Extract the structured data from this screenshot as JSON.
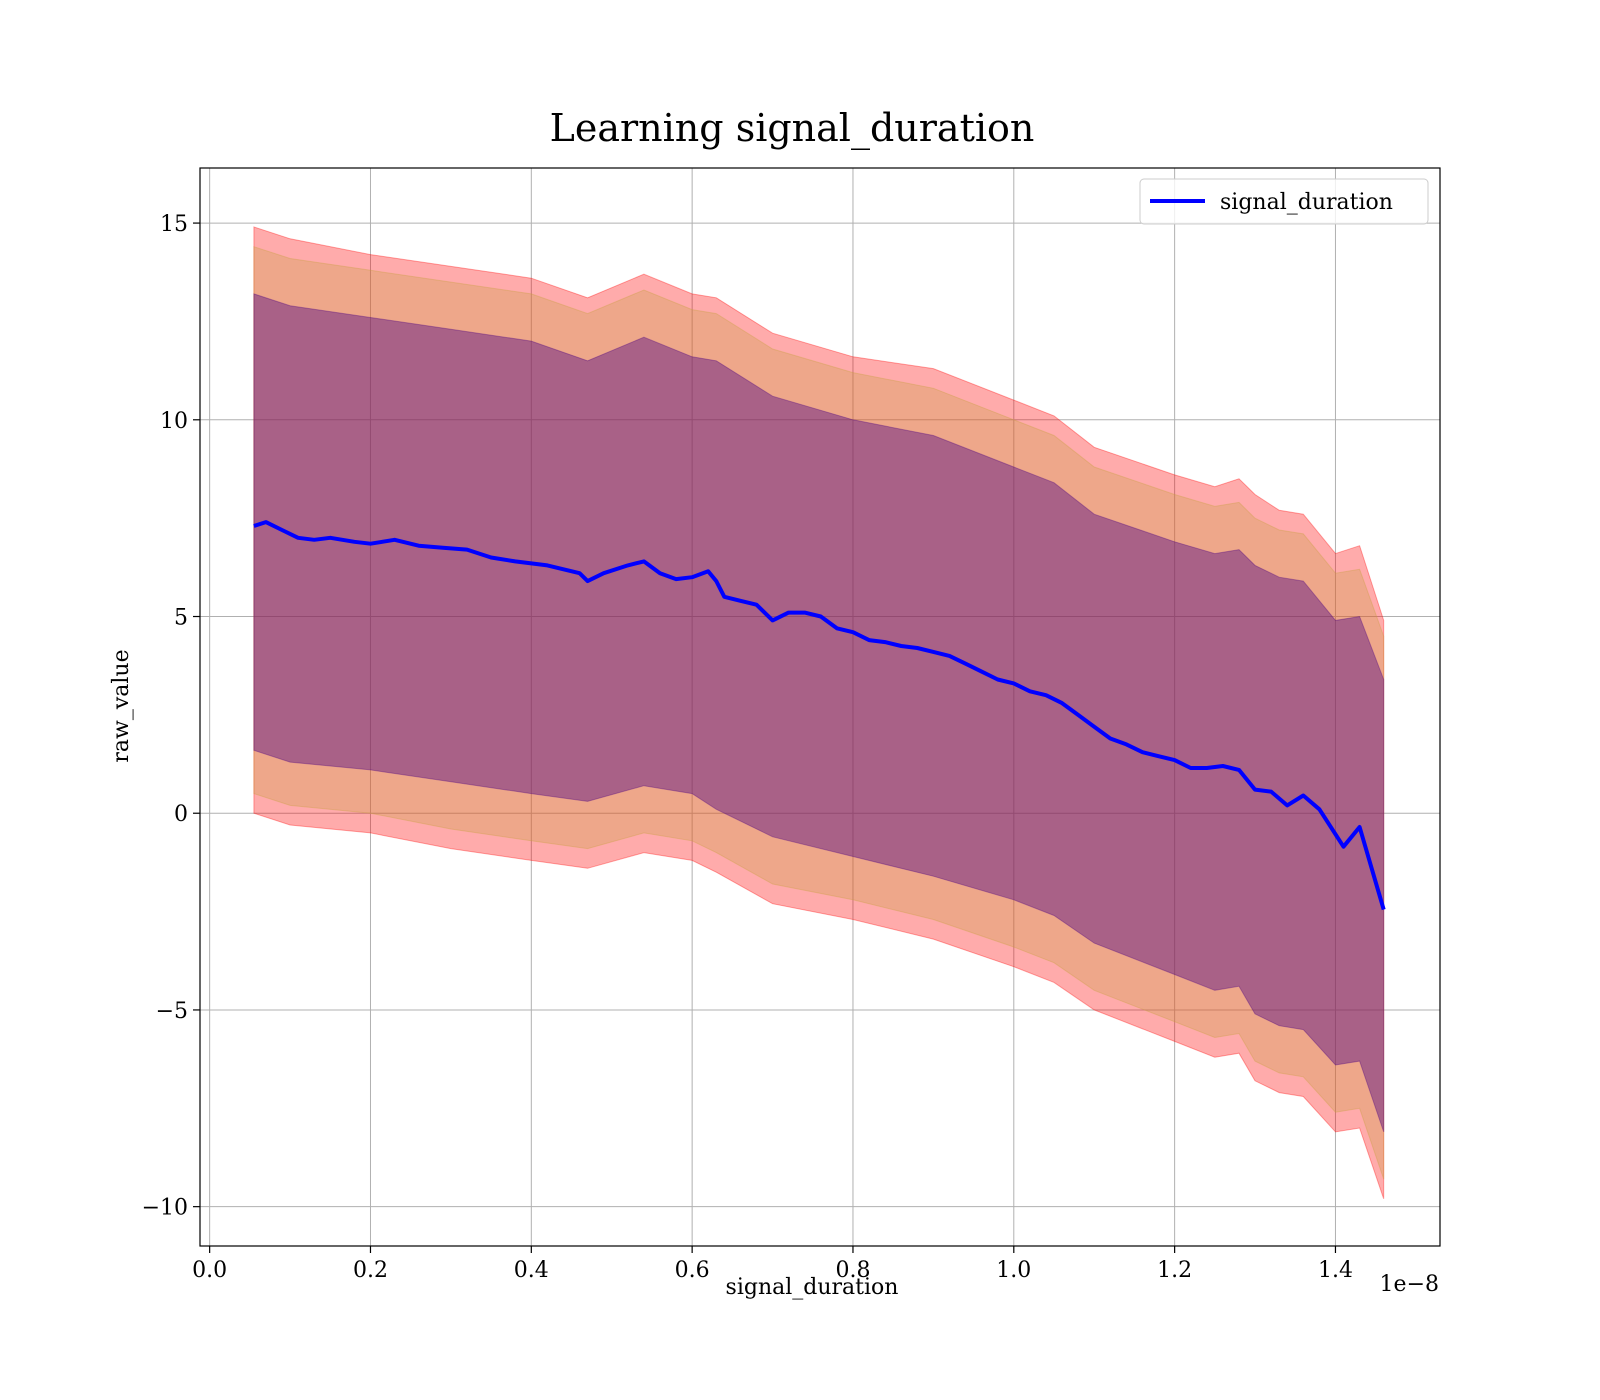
{
  "chart_data": {
    "type": "line",
    "title": "Learning signal_duration",
    "xlabel": "signal_duration",
    "ylabel": "raw_value",
    "x_offset_label": "1e−8",
    "xlim": [
      -0.012,
      1.53
    ],
    "ylim": [
      -11.0,
      16.4
    ],
    "x_ticks": [
      0.0,
      0.2,
      0.4,
      0.6,
      0.8,
      1.0,
      1.2,
      1.4
    ],
    "x_tick_labels": [
      "0.0",
      "0.2",
      "0.4",
      "0.6",
      "0.8",
      "1.0",
      "1.2",
      "1.4"
    ],
    "y_ticks": [
      -10,
      -5,
      0,
      5,
      10,
      15
    ],
    "y_tick_labels": [
      "−10",
      "−5",
      "0",
      "5",
      "10",
      "15"
    ],
    "grid": true,
    "legend": {
      "position": "top-right",
      "entries": [
        "signal_duration"
      ]
    },
    "colors": {
      "line": "#0000ff",
      "band_outer": "#ff0000",
      "band_inner": "#4b0082"
    },
    "series": [
      {
        "name": "signal_duration",
        "x": [
          0.055,
          0.07,
          0.09,
          0.11,
          0.13,
          0.15,
          0.18,
          0.2,
          0.23,
          0.26,
          0.29,
          0.32,
          0.35,
          0.38,
          0.4,
          0.42,
          0.44,
          0.46,
          0.47,
          0.49,
          0.52,
          0.54,
          0.56,
          0.58,
          0.6,
          0.62,
          0.63,
          0.64,
          0.66,
          0.68,
          0.7,
          0.72,
          0.74,
          0.76,
          0.78,
          0.8,
          0.82,
          0.84,
          0.86,
          0.88,
          0.9,
          0.92,
          0.94,
          0.96,
          0.98,
          1.0,
          1.02,
          1.04,
          1.06,
          1.08,
          1.1,
          1.12,
          1.14,
          1.16,
          1.18,
          1.2,
          1.22,
          1.24,
          1.26,
          1.28,
          1.3,
          1.32,
          1.34,
          1.36,
          1.38,
          1.41,
          1.43,
          1.46
        ],
        "y": [
          7.3,
          7.4,
          7.2,
          7.0,
          6.95,
          7.0,
          6.9,
          6.85,
          6.95,
          6.8,
          6.75,
          6.7,
          6.5,
          6.4,
          6.35,
          6.3,
          6.2,
          6.1,
          5.9,
          6.1,
          6.3,
          6.4,
          6.1,
          5.95,
          6.0,
          6.15,
          5.9,
          5.5,
          5.4,
          5.3,
          4.9,
          5.1,
          5.1,
          5.0,
          4.7,
          4.6,
          4.4,
          4.35,
          4.25,
          4.2,
          4.1,
          4.0,
          3.8,
          3.6,
          3.4,
          3.3,
          3.1,
          3.0,
          2.8,
          2.5,
          2.2,
          1.9,
          1.75,
          1.55,
          1.45,
          1.35,
          1.15,
          1.15,
          1.2,
          1.1,
          0.6,
          0.55,
          0.2,
          0.45,
          0.1,
          -0.85,
          -0.35,
          -2.45
        ]
      }
    ],
    "bands": [
      {
        "x": [
          0.055,
          0.1,
          0.2,
          0.3,
          0.4,
          0.47,
          0.54,
          0.6,
          0.63,
          0.7,
          0.8,
          0.9,
          1.0,
          1.05,
          1.1,
          1.2,
          1.25,
          1.28,
          1.3,
          1.33,
          1.36,
          1.4,
          1.43,
          1.46
        ],
        "upper": [
          14.9,
          14.6,
          14.2,
          13.9,
          13.6,
          13.1,
          13.7,
          13.2,
          13.1,
          12.2,
          11.6,
          11.3,
          10.5,
          10.1,
          9.3,
          8.6,
          8.3,
          8.5,
          8.1,
          7.7,
          7.6,
          6.6,
          6.8,
          4.9
        ],
        "lower": [
          0.0,
          -0.3,
          -0.5,
          -0.9,
          -1.2,
          -1.4,
          -1.0,
          -1.2,
          -1.5,
          -2.3,
          -2.7,
          -3.2,
          -3.9,
          -4.3,
          -5.0,
          -5.8,
          -6.2,
          -6.1,
          -6.8,
          -7.1,
          -7.2,
          -8.1,
          -8.0,
          -9.8
        ]
      },
      {
        "x": [
          0.055,
          0.1,
          0.2,
          0.3,
          0.4,
          0.47,
          0.54,
          0.6,
          0.63,
          0.7,
          0.8,
          0.9,
          1.0,
          1.05,
          1.1,
          1.2,
          1.25,
          1.28,
          1.3,
          1.33,
          1.36,
          1.4,
          1.43,
          1.46
        ],
        "upper": [
          14.4,
          14.1,
          13.8,
          13.5,
          13.2,
          12.7,
          13.3,
          12.8,
          12.7,
          11.8,
          11.2,
          10.8,
          10.0,
          9.6,
          8.8,
          8.1,
          7.8,
          7.9,
          7.5,
          7.2,
          7.1,
          6.1,
          6.2,
          4.5
        ],
        "lower": [
          0.5,
          0.2,
          0.0,
          -0.4,
          -0.7,
          -0.9,
          -0.5,
          -0.7,
          -1.0,
          -1.8,
          -2.2,
          -2.7,
          -3.4,
          -3.8,
          -4.5,
          -5.3,
          -5.7,
          -5.6,
          -6.3,
          -6.6,
          -6.7,
          -7.6,
          -7.5,
          -9.3
        ]
      },
      {
        "x": [
          0.055,
          0.1,
          0.2,
          0.3,
          0.4,
          0.47,
          0.54,
          0.6,
          0.63,
          0.7,
          0.8,
          0.9,
          1.0,
          1.05,
          1.1,
          1.2,
          1.25,
          1.28,
          1.3,
          1.33,
          1.36,
          1.4,
          1.43,
          1.46
        ],
        "upper": [
          13.2,
          12.9,
          12.6,
          12.3,
          12.0,
          11.5,
          12.1,
          11.6,
          11.5,
          10.6,
          10.0,
          9.6,
          8.8,
          8.4,
          7.6,
          6.9,
          6.6,
          6.7,
          6.3,
          6.0,
          5.9,
          4.9,
          5.0,
          3.4
        ],
        "lower": [
          1.6,
          1.3,
          1.1,
          0.8,
          0.5,
          0.3,
          0.7,
          0.5,
          0.1,
          -0.6,
          -1.1,
          -1.6,
          -2.2,
          -2.6,
          -3.3,
          -4.1,
          -4.5,
          -4.4,
          -5.1,
          -5.4,
          -5.5,
          -6.4,
          -6.3,
          -8.1
        ]
      }
    ]
  }
}
